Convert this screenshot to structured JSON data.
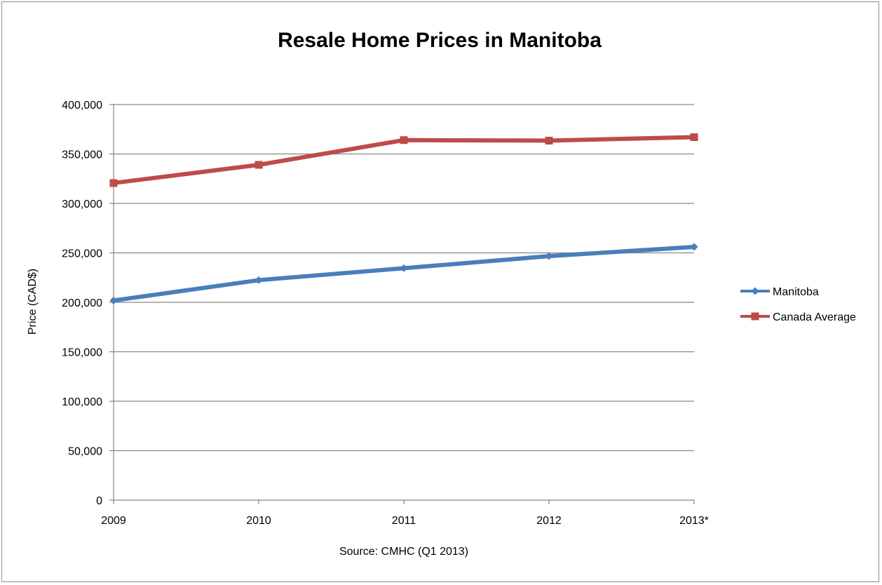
{
  "chart_data": {
    "type": "line",
    "title": "Resale Home Prices in Manitoba",
    "ylabel": "Price (CAD$)",
    "xlabel": "Source: CMHC (Q1 2013)",
    "categories": [
      "2009",
      "2010",
      "2011",
      "2012",
      "2013*"
    ],
    "ylim": [
      0,
      400000
    ],
    "yticks": [
      0,
      50000,
      100000,
      150000,
      200000,
      250000,
      300000,
      350000,
      400000
    ],
    "ytick_labels": [
      "0",
      "50,000",
      "100,000",
      "150,000",
      "200,000",
      "250,000",
      "300,000",
      "350,000",
      "400,000"
    ],
    "grid": true,
    "legend_position": "right",
    "series": [
      {
        "name": "Manitoba",
        "color": "#4a7ebb",
        "marker": "diamond",
        "values": [
          201800,
          222400,
          234500,
          246700,
          256000
        ]
      },
      {
        "name": "Canada Average",
        "color": "#be4b48",
        "marker": "square",
        "values": [
          320600,
          339000,
          364000,
          363500,
          367000
        ]
      }
    ]
  }
}
